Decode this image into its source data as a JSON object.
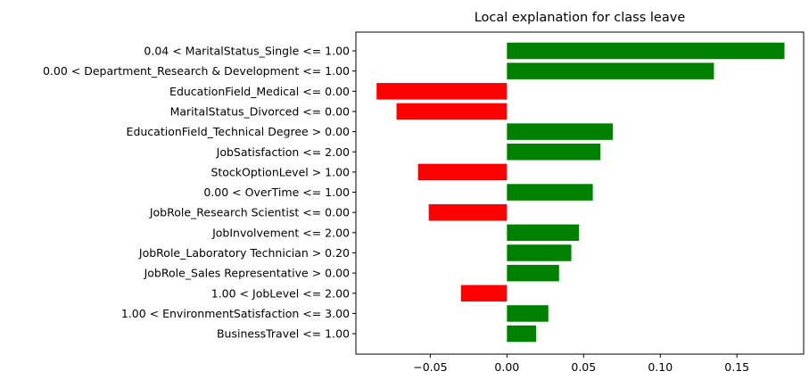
{
  "chart_data": {
    "type": "bar",
    "orientation": "horizontal",
    "title": "Local explanation for class leave",
    "xlabel": "",
    "ylabel": "",
    "xlim": [
      -0.0985,
      0.1935
    ],
    "xticks": [
      -0.05,
      0.0,
      0.05,
      0.1,
      0.15
    ],
    "xtick_labels": [
      "−0.05",
      "0.00",
      "0.05",
      "0.10",
      "0.15"
    ],
    "grid": false,
    "legend": false,
    "positive_color": "#008000",
    "negative_color": "#ff0000",
    "categories": [
      "0.04 < MaritalStatus_Single <= 1.00",
      "0.00 < Department_Research & Development <= 1.00",
      "EducationField_Medical <= 0.00",
      "MaritalStatus_Divorced <= 0.00",
      "EducationField_Technical Degree > 0.00",
      "JobSatisfaction <= 2.00",
      "StockOptionLevel > 1.00",
      "0.00 < OverTime <= 1.00",
      "JobRole_Research Scientist <= 0.00",
      "JobInvolvement <= 2.00",
      "JobRole_Laboratory Technician > 0.20",
      "JobRole_Sales Representative > 0.00",
      "1.00 < JobLevel <= 2.00",
      "1.00 < EnvironmentSatisfaction <= 3.00",
      "BusinessTravel <= 1.00"
    ],
    "values": [
      0.181,
      0.135,
      -0.085,
      -0.072,
      0.069,
      0.061,
      -0.058,
      0.056,
      -0.051,
      0.047,
      0.042,
      0.034,
      -0.03,
      0.027,
      0.019
    ]
  }
}
